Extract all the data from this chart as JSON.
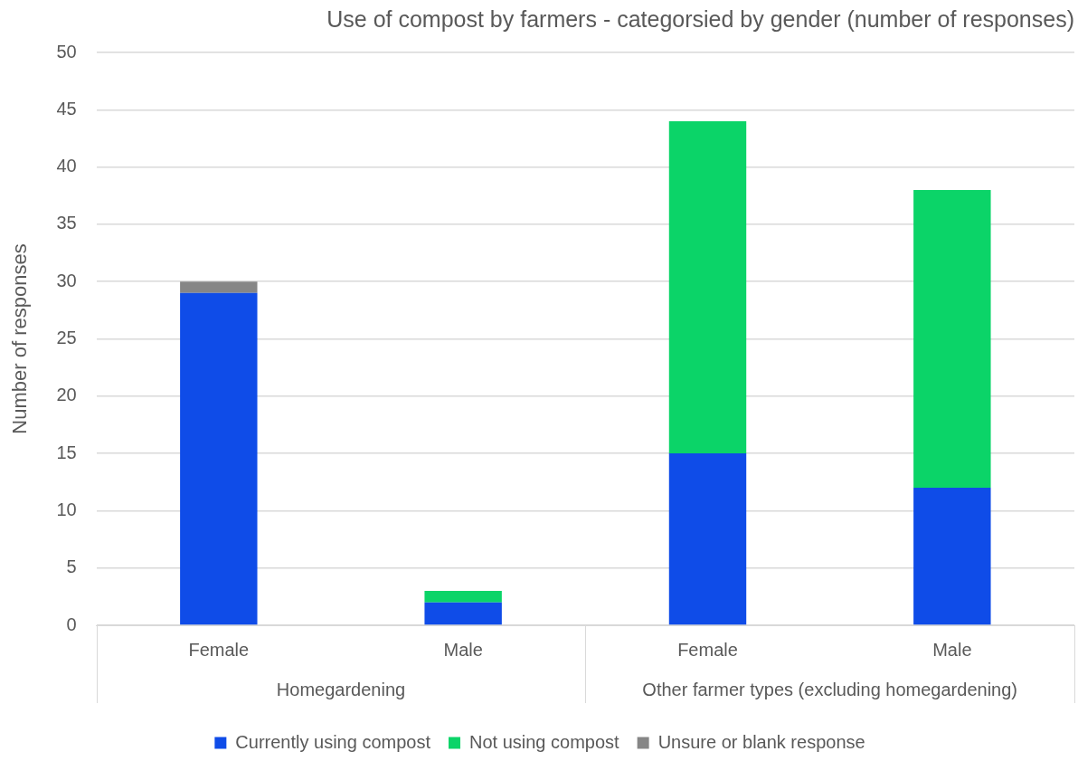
{
  "chart_data": {
    "type": "bar",
    "title": "Use of compost by farmers - categorsied by gender (number of responses)",
    "ylabel": "Number of responses",
    "categories": [
      "Female",
      "Male",
      "Female",
      "Male"
    ],
    "annotations": [
      "Homegardening",
      "Other farmer types (excluding homegardening)"
    ],
    "stacked": true,
    "series": [
      {
        "name": "Currently using compost",
        "color": "#0f4ce8",
        "values": [
          29,
          2,
          15,
          12
        ]
      },
      {
        "name": "Not using compost",
        "color": "#0bd468",
        "values": [
          null,
          1,
          29,
          26
        ]
      },
      {
        "name": "Unsure or blank response",
        "color": "#868686",
        "values": [
          1,
          null,
          null,
          null
        ]
      }
    ],
    "ylim": [
      0,
      50
    ],
    "yticks": [
      0,
      5,
      10,
      15,
      20,
      25,
      30,
      35,
      40,
      45,
      50
    ],
    "grid": "y",
    "legend": "bottom"
  }
}
